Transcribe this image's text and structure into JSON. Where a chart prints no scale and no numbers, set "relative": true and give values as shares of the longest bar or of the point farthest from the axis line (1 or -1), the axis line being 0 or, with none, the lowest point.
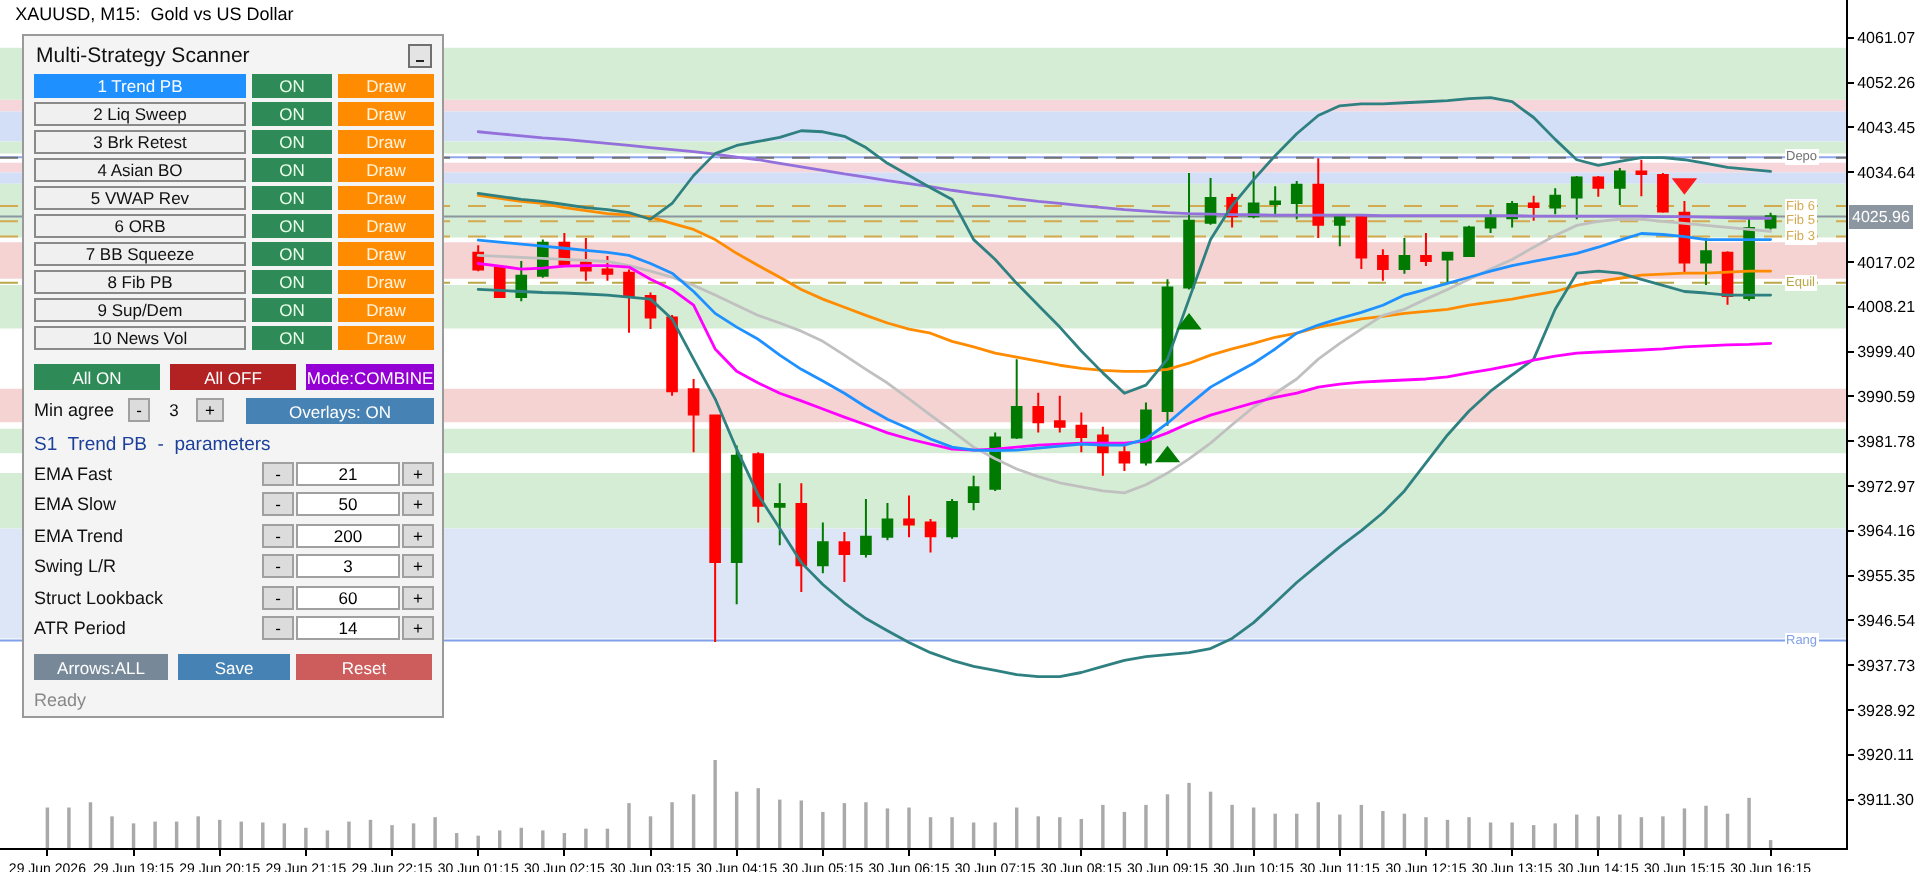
{
  "chart_data": [
    {
      "type": "candlestick",
      "title": "XAUUSD, M15:  Gold vs US Dollar",
      "categories": [
        "29 Jun 2026",
        null,
        null,
        null,
        "29 Jun 19:15",
        null,
        null,
        null,
        "29 Jun 20:15",
        null,
        null,
        null,
        "29 Jun 21:15",
        null,
        null,
        null,
        "29 Jun 22:15",
        null,
        null,
        null,
        "30 Jun 01:15",
        null,
        null,
        null,
        "30 Jun 02:15",
        null,
        null,
        null,
        "30 Jun 03:15",
        null,
        null,
        null,
        "30 Jun 04:15",
        null,
        null,
        null,
        "30 Jun 05:15",
        null,
        null,
        null,
        "30 Jun 06:15",
        null,
        null,
        null,
        "30 Jun 07:15",
        null,
        null,
        null,
        "30 Jun 08:15",
        null,
        null,
        null,
        "30 Jun 09:15",
        null,
        null,
        null,
        "30 Jun 10:15",
        null,
        null,
        null,
        "30 Jun 11:15",
        null,
        null,
        null,
        "30 Jun 12:15",
        null,
        null,
        null,
        "30 Jun 13:15",
        null,
        null,
        null,
        "30 Jun 14:15",
        null,
        null,
        null,
        "30 Jun 15:15",
        null,
        null,
        null,
        "30 Jun 16:15"
      ],
      "ohlc": [
        null,
        null,
        null,
        null,
        null,
        null,
        null,
        null,
        null,
        null,
        null,
        null,
        null,
        null,
        null,
        null,
        null,
        null,
        null,
        null,
        [
          4018.8,
          4020.3,
          4015.2,
          4015.5
        ],
        [
          4015.8,
          4016.2,
          4009.9,
          4010.1
        ],
        [
          4010.1,
          4017.2,
          4009.3,
          4014.3
        ],
        [
          4014.3,
          4021.4,
          4013.9,
          4020.8
        ],
        [
          4020.8,
          4022.7,
          4016.2,
          4016.5
        ],
        [
          4016.9,
          4021.7,
          4013.3,
          4015.3
        ],
        [
          4015.5,
          4018.2,
          4013.3,
          4014.7
        ],
        [
          4014.9,
          4015.5,
          4003.1,
          4010.3
        ],
        [
          4010.3,
          4011.0,
          4003.8,
          4006.1
        ],
        [
          4006.1,
          4006.6,
          3990.7,
          3991.6
        ],
        [
          3992.0,
          3994.0,
          3979.6,
          3987.0
        ],
        [
          3986.8,
          3986.8,
          3942.3,
          3958.0
        ],
        [
          3958.0,
          3980.9,
          3949.7,
          3978.9
        ],
        [
          3979.2,
          3979.6,
          3965.8,
          3969.1
        ],
        [
          3968.9,
          3973.5,
          3961.3,
          3969.4
        ],
        [
          3969.4,
          3973.5,
          3952.1,
          3957.4
        ],
        [
          3957.4,
          3965.8,
          3955.8,
          3961.9
        ],
        [
          3961.9,
          3963.9,
          3954.1,
          3959.6
        ],
        [
          3959.6,
          3970.4,
          3958.9,
          3963.0
        ],
        [
          3963.0,
          3969.6,
          3962.3,
          3966.4
        ],
        [
          3966.4,
          3971.1,
          3962.9,
          3965.4
        ],
        [
          3965.8,
          3966.5,
          3959.9,
          3963.1
        ],
        [
          3963.1,
          3970.4,
          3962.6,
          3969.8
        ],
        [
          3969.8,
          3975.0,
          3968.2,
          3972.7
        ],
        [
          3972.4,
          3983.5,
          3972.0,
          3982.5
        ],
        [
          3982.5,
          3997.9,
          3982.2,
          3988.5
        ],
        [
          3988.5,
          3991.3,
          3983.5,
          3985.5
        ],
        [
          3985.7,
          3990.7,
          3983.5,
          3984.6
        ],
        [
          3984.8,
          3987.4,
          3979.6,
          3982.6
        ],
        [
          3982.9,
          3984.6,
          3975.0,
          3979.6
        ],
        [
          3979.6,
          3981.5,
          3975.9,
          3977.6
        ],
        [
          3977.6,
          3989.4,
          3977.0,
          3987.8
        ],
        [
          3987.7,
          4013.6,
          3984.8,
          4012.0
        ],
        [
          4012.0,
          4034.5,
          4011.6,
          4025.1
        ],
        [
          4024.7,
          4033.5,
          4024.3,
          4029.6
        ],
        [
          4029.6,
          4030.4,
          4023.8,
          4026.0
        ],
        [
          4026.0,
          4034.8,
          4025.6,
          4028.5
        ],
        [
          4028.4,
          4031.9,
          4026.0,
          4028.9
        ],
        [
          4028.6,
          4032.9,
          4025.4,
          4032.2
        ],
        [
          4032.2,
          4037.4,
          4021.7,
          4024.3
        ],
        [
          4024.3,
          4026.0,
          4020.1,
          4026.0
        ],
        [
          4026.0,
          4026.0,
          4015.6,
          4017.9
        ],
        [
          4018.2,
          4019.5,
          4013.3,
          4015.6
        ],
        [
          4015.6,
          4021.7,
          4014.7,
          4018.2
        ],
        [
          4018.2,
          4022.7,
          4016.2,
          4017.2
        ],
        [
          4017.5,
          4018.8,
          4012.9,
          4018.8
        ],
        [
          4018.2,
          4024.1,
          4018.2,
          4023.8
        ],
        [
          4023.8,
          4027.3,
          4022.7,
          4025.6
        ],
        [
          4025.6,
          4029.0,
          4023.8,
          4028.4
        ],
        [
          4028.5,
          4030.0,
          4025.1,
          4027.8
        ],
        [
          4027.7,
          4031.5,
          4026.4,
          4030.0
        ],
        [
          4029.7,
          4033.9,
          4025.4,
          4033.6
        ],
        [
          4033.6,
          4033.9,
          4029.8,
          4031.6
        ],
        [
          4031.6,
          4035.5,
          4028.2,
          4034.8
        ],
        [
          4034.8,
          4037.1,
          4029.9,
          4034.3
        ],
        [
          4034.1,
          4034.5,
          4026.7,
          4026.9
        ],
        [
          4026.7,
          4029.0,
          4014.9,
          4016.9
        ],
        [
          4016.9,
          4021.7,
          4012.5,
          4019.1
        ],
        [
          4018.8,
          4019.1,
          4008.6,
          4010.3
        ],
        [
          4009.9,
          4025.6,
          4009.4,
          4023.7
        ],
        [
          4023.8,
          4026.7,
          4023.4,
          4026.0
        ]
      ],
      "series": [
        {
          "type": "line",
          "color": "#9370db",
          "values": [
            null,
            null,
            null,
            null,
            null,
            null,
            null,
            null,
            null,
            null,
            null,
            null,
            null,
            null,
            null,
            null,
            null,
            null,
            null,
            null,
            4042.6,
            4042.2,
            4041.8,
            4041.4,
            4041.1,
            4040.7,
            4040.3,
            4039.9,
            4039.5,
            4039.1,
            4038.7,
            4038.2,
            4037.6,
            4037.1,
            4036.4,
            4035.7,
            4035.0,
            4034.3,
            4033.7,
            4033.0,
            4032.4,
            4031.8,
            4031.1,
            4030.5,
            4030.0,
            4029.4,
            4028.9,
            4028.5,
            4028.1,
            4027.7,
            4027.3,
            4027.0,
            4026.7,
            4026.5,
            4026.4,
            4026.3,
            4026.3,
            4026.2,
            4026.2,
            4026.2,
            4026.2,
            4026.2,
            4026.1,
            4026.1,
            4026.1,
            4026.1,
            4026.1,
            4026.1,
            4026.1,
            4026.0,
            4026.0,
            4026.0,
            4026.0,
            4026.0,
            4026.0,
            4025.9,
            4025.9,
            4025.8,
            4025.7,
            4025.6,
            4025.6
          ]
        },
        {
          "type": "line",
          "color": "#ff8c00",
          "values": [
            null,
            null,
            null,
            null,
            null,
            null,
            null,
            null,
            null,
            null,
            null,
            null,
            null,
            null,
            null,
            null,
            null,
            null,
            null,
            null,
            4030.1,
            4029.5,
            4028.9,
            4028.5,
            4027.7,
            4027.1,
            4026.5,
            4026.2,
            4025.8,
            4024.6,
            4023.4,
            4021.4,
            4018.7,
            4016.3,
            4014.0,
            4011.6,
            4009.7,
            4008.1,
            4006.5,
            4005.0,
            4003.8,
            4003.0,
            4001.4,
            4000.3,
            3999.1,
            3998.3,
            3997.5,
            3996.7,
            3996.1,
            3995.7,
            3995.5,
            3995.5,
            3995.9,
            3997.1,
            3998.7,
            3999.9,
            4001.0,
            4002.2,
            4003.0,
            4004.2,
            4005.0,
            4005.8,
            4006.3,
            4006.9,
            4007.3,
            4007.7,
            4008.5,
            4009.1,
            4009.7,
            4010.5,
            4011.2,
            4012.4,
            4013.2,
            4013.8,
            4014.4,
            4014.6,
            4014.8,
            4014.8,
            4015.0,
            4015.2,
            4015.2
          ]
        },
        {
          "type": "line",
          "color": "#c0c0c0",
          "values": [
            null,
            null,
            null,
            null,
            null,
            null,
            null,
            null,
            null,
            null,
            null,
            null,
            null,
            null,
            null,
            null,
            null,
            null,
            null,
            null,
            4018.3,
            4018.1,
            4017.9,
            4017.7,
            4017.5,
            4017.3,
            4017.1,
            4016.3,
            4015.2,
            4014.0,
            4012.4,
            4010.5,
            4008.5,
            4006.5,
            4005.0,
            4003.4,
            4001.4,
            3998.7,
            3995.9,
            3993.2,
            3990.1,
            3986.9,
            3983.8,
            3980.6,
            3978.3,
            3976.3,
            3974.8,
            3973.6,
            3972.8,
            3972.0,
            3971.6,
            3973.2,
            3975.5,
            3978.3,
            3981.4,
            3985.0,
            3988.5,
            3991.2,
            3994.0,
            3997.9,
            4001.0,
            4003.8,
            4006.5,
            4007.7,
            4009.7,
            4011.6,
            4013.6,
            4015.6,
            4017.5,
            4019.9,
            4022.2,
            4024.2,
            4025.0,
            4025.4,
            4025.4,
            4025.0,
            4024.6,
            4024.2,
            4023.8,
            4023.4,
            4023.0
          ]
        },
        {
          "type": "line",
          "color": "#2f8080",
          "values": [
            null,
            null,
            null,
            null,
            null,
            null,
            null,
            null,
            null,
            null,
            null,
            null,
            null,
            null,
            null,
            null,
            null,
            null,
            null,
            null,
            4030.5,
            4029.9,
            4029.3,
            4028.9,
            4028.3,
            4027.7,
            4027.3,
            4026.7,
            4025.4,
            4028.5,
            4034.0,
            4038.3,
            4039.9,
            4040.7,
            4041.5,
            4042.8,
            4042.6,
            4041.7,
            4039.5,
            4036.4,
            4034.0,
            4031.6,
            4029.3,
            4021.4,
            4017.5,
            4012.8,
            4008.5,
            4004.2,
            3999.5,
            3995.2,
            3991.2,
            3992.8,
            3997.9,
            4009.7,
            4021.4,
            4028.1,
            4033.2,
            4037.9,
            4042.2,
            4045.8,
            4047.7,
            4048.1,
            4048.1,
            4048.3,
            4048.5,
            4048.7,
            4049.1,
            4049.3,
            4048.5,
            4045.4,
            4041.1,
            4037.1,
            4036.0,
            4036.8,
            4037.5,
            4037.5,
            4037.1,
            4036.4,
            4035.6,
            4035.2,
            4034.8
          ]
        },
        {
          "type": "line",
          "color": "#2f8080",
          "values": [
            null,
            null,
            null,
            null,
            null,
            null,
            null,
            null,
            null,
            null,
            null,
            null,
            null,
            null,
            null,
            null,
            null,
            null,
            null,
            null,
            4011.6,
            4011.4,
            4011.2,
            4011.0,
            4010.9,
            4010.7,
            4010.5,
            4010.1,
            4009.7,
            4005.8,
            3997.9,
            3990.1,
            3980.2,
            3971.2,
            3964.6,
            3957.9,
            3953.6,
            3950.0,
            3946.9,
            3944.5,
            3942.2,
            3940.2,
            3938.7,
            3937.5,
            3936.7,
            3935.9,
            3935.5,
            3935.5,
            3936.3,
            3937.5,
            3938.7,
            3939.4,
            3939.8,
            3940.2,
            3941.0,
            3943.0,
            3946.1,
            3950.0,
            3954.0,
            3957.5,
            3961.0,
            3964.2,
            3967.7,
            3972.0,
            3977.5,
            3983.0,
            3987.7,
            3991.6,
            3994.8,
            3997.9,
            4007.7,
            4014.8,
            4015.2,
            4014.8,
            4013.6,
            4012.4,
            4011.2,
            4010.9,
            4010.5,
            4010.5,
            4010.5
          ]
        },
        {
          "type": "line",
          "color": "#ff00ff",
          "values": [
            null,
            null,
            null,
            null,
            null,
            null,
            null,
            null,
            null,
            null,
            null,
            null,
            null,
            null,
            null,
            null,
            null,
            null,
            null,
            null,
            4016.7,
            4016.2,
            4015.6,
            4015.8,
            4016.2,
            4016.3,
            4016.3,
            4016.0,
            4013.6,
            4011.6,
            4008.5,
            3999.9,
            3995.5,
            3993.2,
            3991.2,
            3989.7,
            3988.1,
            3986.5,
            3985.0,
            3983.4,
            3982.2,
            3981.2,
            3980.2,
            3980.0,
            3980.2,
            3980.6,
            3981.0,
            3981.2,
            3981.4,
            3981.4,
            3981.4,
            3981.8,
            3983.4,
            3985.3,
            3986.9,
            3988.1,
            3989.3,
            3990.4,
            3991.2,
            3992.4,
            3993.0,
            3993.4,
            3993.6,
            3993.8,
            3994.0,
            3994.4,
            3995.2,
            3995.9,
            3996.7,
            3997.7,
            3998.5,
            3999.1,
            3999.3,
            3999.5,
            3999.7,
            3999.9,
            4000.3,
            4000.5,
            4000.7,
            4000.8,
            4001.0
          ]
        },
        {
          "type": "line",
          "color": "#1e90ff",
          "values": [
            null,
            null,
            null,
            null,
            null,
            null,
            null,
            null,
            null,
            null,
            null,
            null,
            null,
            null,
            null,
            null,
            null,
            null,
            null,
            null,
            4021.3,
            4020.9,
            4020.5,
            4020.1,
            4019.7,
            4019.3,
            4018.9,
            4018.3,
            4016.7,
            4014.8,
            4011.2,
            4006.9,
            4004.2,
            4001.8,
            3998.7,
            3995.9,
            3993.6,
            3991.2,
            3988.5,
            3986.1,
            3984.2,
            3982.2,
            3980.6,
            3980.0,
            3979.9,
            3980.0,
            3980.4,
            3980.8,
            3981.2,
            3981.0,
            3981.0,
            3982.2,
            3985.3,
            3988.9,
            3992.4,
            3994.8,
            3997.1,
            3999.9,
            4003.0,
            4004.6,
            4005.9,
            4007.1,
            4008.5,
            4010.5,
            4011.6,
            4012.8,
            4014.0,
            4015.2,
            4016.3,
            4017.1,
            4017.9,
            4018.7,
            4019.9,
            4021.3,
            4022.6,
            4022.4,
            4022.0,
            4021.4,
            4021.4,
            4021.4,
            4021.4
          ]
        },
        {
          "type": "scatter",
          "color": "#007a00",
          "marker": "triangle",
          "values": [
            null,
            null,
            null,
            null,
            null,
            null,
            null,
            null,
            null,
            null,
            null,
            null,
            null,
            null,
            null,
            null,
            null,
            null,
            null,
            null,
            null,
            null,
            null,
            null,
            null,
            null,
            null,
            null,
            null,
            null,
            null,
            null,
            null,
            null,
            null,
            null,
            null,
            null,
            null,
            null,
            null,
            null,
            null,
            null,
            null,
            null,
            null,
            null,
            null,
            null,
            null,
            null,
            3978.7,
            4004.8,
            null,
            null,
            null,
            null,
            null,
            null,
            null,
            null,
            null,
            null,
            null,
            null,
            null,
            null,
            null,
            null,
            null,
            null,
            null,
            null,
            null,
            null,
            null,
            null,
            null,
            null,
            null
          ]
        },
        {
          "type": "scatter",
          "color": "#ff1a1a",
          "marker": "triangle",
          "values": [
            null,
            null,
            null,
            null,
            null,
            null,
            null,
            null,
            null,
            null,
            null,
            null,
            null,
            null,
            null,
            null,
            null,
            null,
            null,
            null,
            null,
            null,
            null,
            null,
            null,
            null,
            null,
            null,
            null,
            null,
            null,
            null,
            null,
            null,
            null,
            null,
            null,
            null,
            null,
            null,
            null,
            null,
            null,
            null,
            null,
            null,
            null,
            null,
            null,
            null,
            null,
            null,
            null,
            null,
            null,
            null,
            null,
            null,
            null,
            null,
            null,
            null,
            null,
            null,
            null,
            null,
            null,
            null,
            null,
            null,
            null,
            null,
            null,
            null,
            null,
            null,
            4032.4,
            null,
            null,
            null,
            null
          ]
        }
      ],
      "ylim": [
        3901.8,
        4068.5
      ],
      "yticks": [
        4061.07,
        4052.26,
        4043.45,
        4034.64,
        4017.02,
        4008.21,
        {
          "value": 3999.4,
          "label": "3999.40"
        },
        3990.59,
        3981.78,
        3972.97,
        3964.16,
        3955.35,
        3946.54,
        3937.73,
        3928.92,
        3920.11,
        {
          "value": 3911.3,
          "label": "3911.30"
        }
      ],
      "bands": [
        {
          "axis": "y",
          "from": 4059.1,
          "to": 4048.9,
          "color": "#d5edd5"
        },
        {
          "axis": "y",
          "from": 4048.9,
          "to": 4046.6,
          "color": "#f6d6da"
        },
        {
          "axis": "y",
          "from": 4046.6,
          "to": 4040.7,
          "color": "#d3def7"
        },
        {
          "axis": "y",
          "from": 4040.7,
          "to": 4038.3,
          "color": "#d5edd5"
        },
        {
          "axis": "y",
          "from": 4036.5,
          "to": 4034.6,
          "color": "#f6d6da"
        },
        {
          "axis": "y",
          "from": 4034.6,
          "to": 4032.4,
          "color": "#d3def7"
        },
        {
          "axis": "y",
          "from": 4032.4,
          "to": 4021.8,
          "color": "#d5edd5"
        },
        {
          "axis": "y",
          "from": 4020.9,
          "to": 4013.7,
          "color": "#f5d3d3"
        },
        {
          "axis": "y",
          "from": 4012.5,
          "to": 4003.9,
          "color": "#d5edd5"
        },
        {
          "axis": "y",
          "from": 3992.1,
          "to": 3985.5,
          "color": "#f5d3d3"
        },
        {
          "axis": "y",
          "from": 3984.2,
          "to": 3979.4,
          "color": "#d5edd5"
        },
        {
          "axis": "y",
          "from": 3975.5,
          "to": 3964.6,
          "color": "#d5edd5"
        },
        {
          "axis": "y",
          "from": 3964.6,
          "to": 3943.0,
          "color": "#dde6f6"
        }
      ],
      "ref_lines": [
        {
          "axis": "y",
          "value": 4037.6,
          "color": "#8ea6ec"
        },
        {
          "axis": "y",
          "value": 4037.5,
          "color": "#707070",
          "line_style": "dashed"
        },
        {
          "axis": "y",
          "value": 4028.0,
          "color": "#d4aa50",
          "line_style": "dashed"
        },
        {
          "axis": "y",
          "value": 4025.0,
          "color": "#d4aa50",
          "line_style": "dashed"
        },
        {
          "axis": "y",
          "value": 4022.0,
          "color": "#d4aa50",
          "line_style": "dashed"
        },
        {
          "axis": "y",
          "value": 4012.9,
          "color": "#b8a848",
          "line_style": "dashed"
        },
        {
          "axis": "y",
          "value": 3942.6,
          "color": "#7f9fe8"
        },
        {
          "axis": "y",
          "value": 4025.96,
          "label": "4025.96",
          "color": "#8c96a0"
        }
      ],
      "annotations": [
        {
          "text": "Depo",
          "y": 4037.5
        },
        {
          "text": "Fib 6",
          "y": 4028.0
        },
        {
          "text": "Fib 5",
          "y": 4025.0
        },
        {
          "text": "Fib 3",
          "y": 4022.0
        },
        {
          "text": "Equil",
          "y": 4012.9
        },
        {
          "text": "Rang",
          "y": 3942.6
        }
      ]
    },
    {
      "type": "bar",
      "relative": true,
      "color": "#a9a9a9",
      "categories": [
        null,
        null,
        null,
        null,
        null,
        null,
        null,
        null,
        null,
        null,
        null,
        null,
        null,
        null,
        null,
        null,
        null,
        null,
        null,
        null,
        null,
        null,
        null,
        null,
        null,
        null,
        null,
        null,
        null,
        null,
        null,
        null,
        null,
        null,
        null,
        null,
        null,
        null,
        null,
        null,
        null,
        null,
        null,
        null,
        null,
        null,
        null,
        null,
        null,
        null,
        null,
        null,
        null,
        null,
        null,
        null,
        null,
        null,
        null,
        null,
        null,
        null,
        null,
        null,
        null,
        null,
        null,
        null,
        null,
        null,
        null,
        null,
        null,
        null,
        null,
        null,
        null,
        null,
        null,
        null,
        null
      ],
      "values": [
        0.46,
        0.46,
        0.52,
        0.36,
        0.28,
        0.3,
        0.3,
        0.36,
        0.32,
        0.3,
        0.29,
        0.28,
        0.23,
        0.2,
        0.3,
        0.32,
        0.26,
        0.28,
        0.35,
        0.17,
        0.14,
        0.2,
        0.23,
        0.2,
        0.17,
        0.22,
        0.22,
        0.51,
        0.36,
        0.52,
        0.61,
        1,
        0.64,
        0.68,
        0.55,
        0.54,
        0.41,
        0.51,
        0.52,
        0.45,
        0.46,
        0.35,
        0.35,
        0.29,
        0.29,
        0.46,
        0.36,
        0.35,
        0.33,
        0.49,
        0.41,
        0.49,
        0.61,
        0.74,
        0.64,
        0.49,
        0.46,
        0.39,
        0.39,
        0.52,
        0.38,
        0.49,
        0.42,
        0.39,
        0.35,
        0.32,
        0.35,
        0.29,
        0.29,
        0.26,
        0.28,
        0.38,
        0.36,
        0.38,
        0.35,
        0.36,
        0.45,
        0.48,
        0.39,
        0.57,
        0.09
      ]
    },
    {
      "type": "other",
      "title": "Multi-Strategy Scanner",
      "annotations": [
        "1 Trend PB",
        "ON",
        "Draw",
        "2 Liq Sweep",
        "ON",
        "Draw",
        "3 Brk Retest",
        "ON",
        "Draw",
        "4 Asian BO",
        "ON",
        "Draw",
        "5 VWAP Rev",
        "ON",
        "Draw",
        "6 ORB",
        "ON",
        "Draw",
        "7 BB Squeeze",
        "ON",
        "Draw",
        "8 Fib PB",
        "ON",
        "Draw",
        "9 Sup/Dem",
        "ON",
        "Draw",
        "10 News Vol",
        "ON",
        "Draw",
        "All ON",
        "All OFF",
        "Mode:COMBINE",
        "Min agree",
        "-",
        "3",
        "+",
        "Overlays: ON",
        "S1  Trend PB  -  parameters",
        "EMA Fast",
        "-",
        "21",
        "+",
        "EMA Slow",
        "-",
        "50",
        "+",
        "EMA Trend",
        "-",
        "200",
        "+",
        "Swing L/R",
        "-",
        "3",
        "+",
        "Struct Lookback",
        "-",
        "60",
        "+",
        "ATR Period",
        "-",
        "14",
        "+",
        "Arrows:ALL",
        "Save",
        "Reset",
        "Ready"
      ]
    }
  ]
}
